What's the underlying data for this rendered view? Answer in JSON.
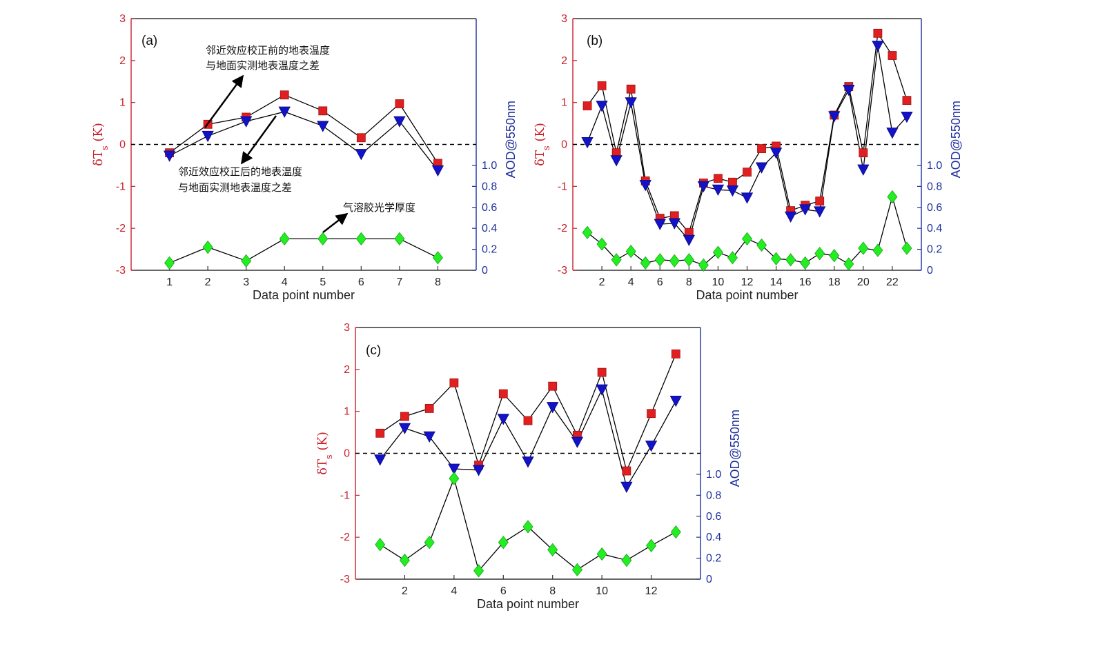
{
  "chart_data": [
    {
      "type": "scatter",
      "panel_label": "(a)",
      "x": [
        1,
        2,
        3,
        4,
        5,
        6,
        7,
        8
      ],
      "xticks": [
        1,
        2,
        3,
        4,
        5,
        6,
        7,
        8
      ],
      "xlim": [
        0,
        9
      ],
      "xlabel": "Data point number",
      "ylabel_left": "δT_s (K)",
      "ylabel_right": "AOD@550nm",
      "ylim_left": [
        -3,
        3
      ],
      "yticks_left": [
        -3,
        -2,
        -1,
        0,
        1,
        2,
        3
      ],
      "ylim_right": [
        0,
        2.4
      ],
      "yticks_right": [
        "0",
        "0.2",
        "0.4",
        "0.6",
        "0.8",
        "1.0"
      ],
      "reference_line": 0,
      "series": [
        {
          "marker": "square",
          "color": "#e02020",
          "axis": "left",
          "values": [
            -0.2,
            0.48,
            0.65,
            1.18,
            0.8,
            0.16,
            0.97,
            -0.45
          ]
        },
        {
          "marker": "triangle-down",
          "color": "#1212c8",
          "axis": "left",
          "values": [
            -0.27,
            0.2,
            0.55,
            0.78,
            0.44,
            -0.23,
            0.55,
            -0.62
          ]
        },
        {
          "marker": "diamond",
          "color": "#22ee22",
          "axis": "right",
          "values": [
            0.07,
            0.22,
            0.09,
            0.3,
            0.3,
            0.3,
            0.3,
            0.12
          ]
        }
      ],
      "annotations": [
        {
          "lines": [
            "邻近效应校正前的地表温度",
            "与地面实测地表温度之差"
          ]
        },
        {
          "lines": [
            "邻近效应校正后的地表温度",
            "与地面实测地表温度之差"
          ]
        },
        {
          "lines": [
            "气溶胶光学厚度"
          ]
        }
      ]
    },
    {
      "type": "scatter",
      "panel_label": "(b)",
      "x": [
        1,
        2,
        3,
        4,
        5,
        6,
        7,
        8,
        9,
        10,
        11,
        12,
        13,
        14,
        15,
        16,
        17,
        18,
        19,
        20,
        21,
        22,
        23
      ],
      "xticks": [
        2,
        4,
        6,
        8,
        10,
        12,
        14,
        16,
        18,
        20,
        22
      ],
      "xlim": [
        0,
        24
      ],
      "xlabel": "Data point number",
      "ylabel_left": "δT_s (K)",
      "ylabel_right": "AOD@550nm",
      "ylim_left": [
        -3,
        3
      ],
      "yticks_left": [
        -3,
        -2,
        -1,
        0,
        1,
        2,
        3
      ],
      "ylim_right": [
        0,
        2.4
      ],
      "yticks_right": [
        "0",
        "0.2",
        "0.4",
        "0.6",
        "0.8",
        "1.0"
      ],
      "reference_line": 0,
      "series": [
        {
          "marker": "square",
          "color": "#e02020",
          "axis": "left",
          "values": [
            0.92,
            1.4,
            -0.2,
            1.32,
            -0.87,
            -1.76,
            -1.7,
            -2.1,
            -0.92,
            -0.81,
            -0.9,
            -0.66,
            -0.1,
            -0.04,
            -1.58,
            -1.45,
            -1.35,
            0.7,
            1.38,
            -0.2,
            2.65,
            2.12,
            1.05
          ]
        },
        {
          "marker": "triangle-down",
          "color": "#1212c8",
          "axis": "left",
          "values": [
            0.05,
            0.92,
            -0.38,
            1.0,
            -0.97,
            -1.9,
            -1.88,
            -2.28,
            -1.0,
            -1.08,
            -1.1,
            -1.27,
            -0.55,
            -0.2,
            -1.72,
            -1.55,
            -1.6,
            0.67,
            1.3,
            -0.6,
            2.35,
            0.28,
            0.66
          ]
        },
        {
          "marker": "diamond",
          "color": "#22ee22",
          "axis": "right",
          "values": [
            0.36,
            0.25,
            0.1,
            0.18,
            0.07,
            0.1,
            0.09,
            0.1,
            0.05,
            0.17,
            0.12,
            0.3,
            0.24,
            0.11,
            0.1,
            0.07,
            0.16,
            0.14,
            0.06,
            0.21,
            0.19,
            0.7,
            0.21
          ]
        }
      ]
    },
    {
      "type": "scatter",
      "panel_label": "(c)",
      "x": [
        1,
        2,
        3,
        4,
        5,
        6,
        7,
        8,
        9,
        10,
        11,
        12,
        13
      ],
      "xticks": [
        2,
        4,
        6,
        8,
        10,
        12
      ],
      "xlim": [
        0,
        14
      ],
      "xlabel": "Data point number",
      "ylabel_left": "δT_s (K)",
      "ylabel_right": "AOD@550nm",
      "ylim_left": [
        -3,
        3
      ],
      "yticks_left": [
        -3,
        -2,
        -1,
        0,
        1,
        2,
        3
      ],
      "ylim_right": [
        0,
        2.4
      ],
      "yticks_right": [
        "0",
        "0.2",
        "0.4",
        "0.6",
        "0.8",
        "1.0"
      ],
      "reference_line": 0,
      "series": [
        {
          "marker": "square",
          "color": "#e02020",
          "axis": "left",
          "values": [
            0.48,
            0.88,
            1.07,
            1.68,
            -0.28,
            1.42,
            0.78,
            1.6,
            0.43,
            1.93,
            -0.42,
            0.95,
            2.37
          ]
        },
        {
          "marker": "triangle-down",
          "color": "#1212c8",
          "axis": "left",
          "values": [
            -0.15,
            0.6,
            0.4,
            -0.37,
            -0.4,
            0.82,
            -0.2,
            1.1,
            0.27,
            1.52,
            -0.8,
            0.18,
            1.25
          ]
        },
        {
          "marker": "diamond",
          "color": "#22ee22",
          "axis": "right",
          "values": [
            0.33,
            0.18,
            0.35,
            0.96,
            0.08,
            0.35,
            0.5,
            0.28,
            0.09,
            0.24,
            0.18,
            0.32,
            0.45
          ]
        }
      ]
    }
  ]
}
